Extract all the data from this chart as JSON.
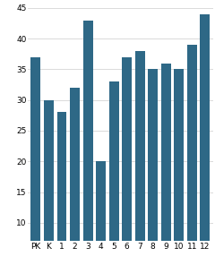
{
  "categories": [
    "PK",
    "K",
    "1",
    "2",
    "3",
    "4",
    "5",
    "6",
    "7",
    "8",
    "9",
    "10",
    "11",
    "12"
  ],
  "values": [
    37,
    30,
    28,
    32,
    43,
    20,
    33,
    37,
    38,
    35,
    36,
    35,
    39,
    44
  ],
  "bar_color": "#2e6886",
  "ylim": [
    7,
    45
  ],
  "yticks": [
    10,
    15,
    20,
    25,
    30,
    35,
    40,
    45
  ],
  "background_color": "#ffffff",
  "tick_fontsize": 6.5,
  "bar_width": 0.75
}
